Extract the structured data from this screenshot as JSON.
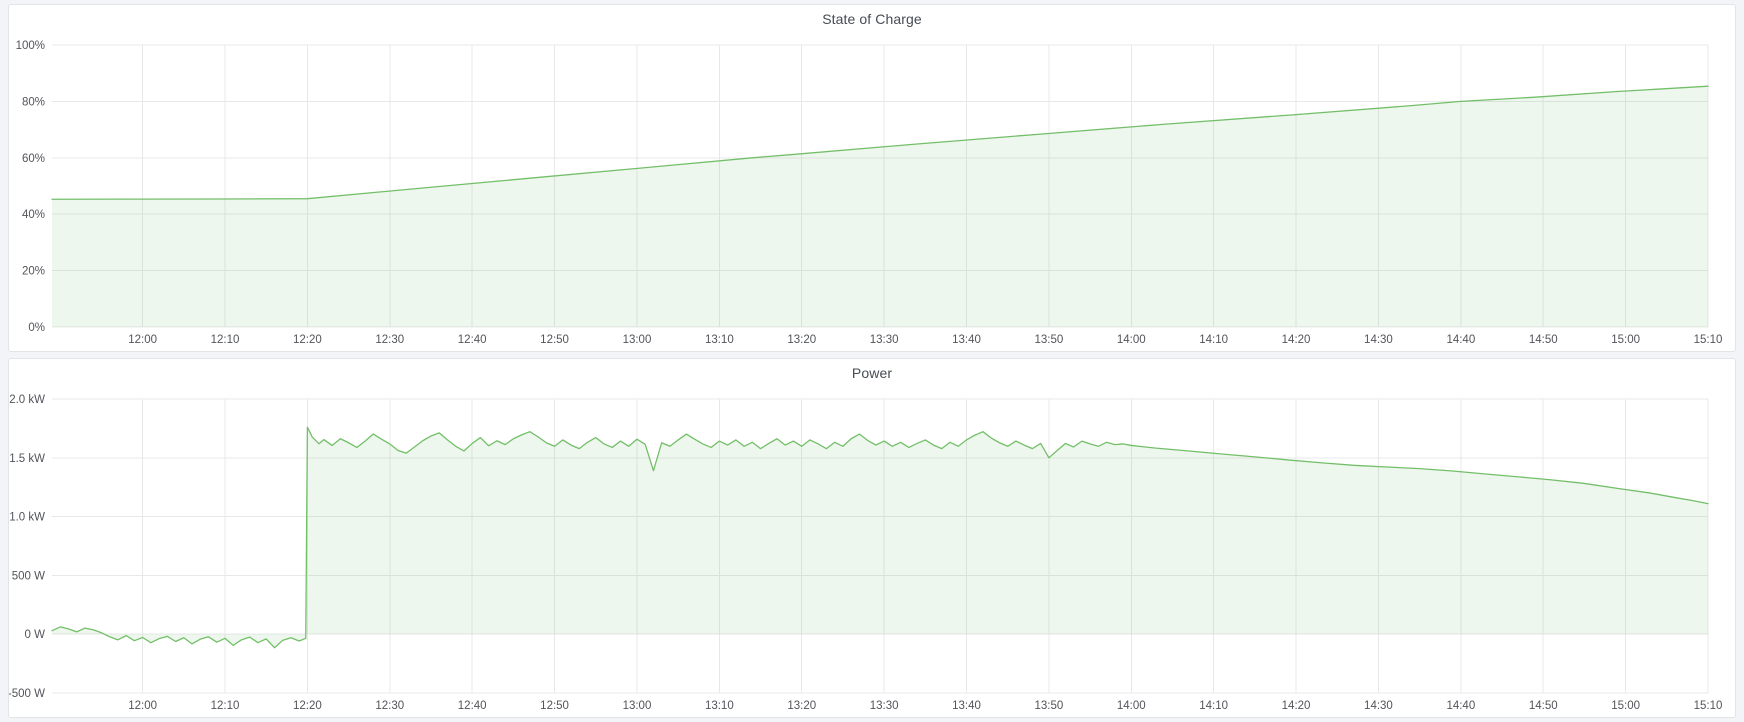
{
  "colors": {
    "series_green": "#73bf69",
    "series_fill": "rgba(115,191,105,0.12)",
    "grid": "#e7e8ea",
    "tick_text": "#52545a",
    "panel_bg": "#ffffff",
    "page_bg": "#f3f4f7"
  },
  "chart_data": [
    {
      "name": "soc",
      "type": "area",
      "title": "State of Charge",
      "xlabel": "",
      "ylabel": "",
      "legend": "none",
      "grid": "on",
      "x_start_time": "11:49",
      "x_end_time": "15:10",
      "x_total_minutes": 201,
      "x_tick_labels": [
        "12:00",
        "12:10",
        "12:20",
        "12:30",
        "12:40",
        "12:50",
        "13:00",
        "13:10",
        "13:20",
        "13:30",
        "13:40",
        "13:50",
        "14:00",
        "14:10",
        "14:20",
        "14:30",
        "14:40",
        "14:50",
        "15:00",
        "15:10"
      ],
      "x_tick_minutes": [
        11,
        21,
        31,
        41,
        51,
        61,
        71,
        81,
        91,
        101,
        111,
        121,
        131,
        141,
        151,
        161,
        171,
        181,
        191,
        201
      ],
      "ylim": [
        0,
        100
      ],
      "y_ticks": [
        {
          "v": 0,
          "label": "0%"
        },
        {
          "v": 20,
          "label": "20%"
        },
        {
          "v": 40,
          "label": "40%"
        },
        {
          "v": 60,
          "label": "60%"
        },
        {
          "v": 80,
          "label": "80%"
        },
        {
          "v": 100,
          "label": "100%"
        }
      ],
      "series": [
        {
          "name": "State of Charge",
          "unit": "%",
          "baseline": 0,
          "points": [
            [
              0,
              45.3
            ],
            [
              10,
              45.35
            ],
            [
              20,
              45.4
            ],
            [
              31,
              45.5
            ],
            [
              45,
              49.3
            ],
            [
              60,
              53.3
            ],
            [
              75,
              57.3
            ],
            [
              85,
              60.0
            ],
            [
              90,
              61.2
            ],
            [
              105,
              64.9
            ],
            [
              120,
              68.4
            ],
            [
              135,
              71.9
            ],
            [
              150,
              75.1
            ],
            [
              165,
              78.5
            ],
            [
              171,
              80.0
            ],
            [
              180,
              81.5
            ],
            [
              190,
              83.5
            ],
            [
              201,
              85.4
            ]
          ]
        }
      ]
    },
    {
      "name": "power",
      "type": "area",
      "title": "Power",
      "xlabel": "",
      "ylabel": "",
      "legend": "none",
      "grid": "on",
      "x_start_time": "11:49",
      "x_end_time": "15:10",
      "x_total_minutes": 201,
      "x_tick_labels": [
        "12:00",
        "12:10",
        "12:20",
        "12:30",
        "12:40",
        "12:50",
        "13:00",
        "13:10",
        "13:20",
        "13:30",
        "13:40",
        "13:50",
        "14:00",
        "14:10",
        "14:20",
        "14:30",
        "14:40",
        "14:50",
        "15:00",
        "15:10"
      ],
      "x_tick_minutes": [
        11,
        21,
        31,
        41,
        51,
        61,
        71,
        81,
        91,
        101,
        111,
        121,
        131,
        141,
        151,
        161,
        171,
        181,
        191,
        201
      ],
      "ylim": [
        -500,
        2000
      ],
      "y_ticks": [
        {
          "v": -500,
          "label": "-500 W"
        },
        {
          "v": 0,
          "label": "0 W"
        },
        {
          "v": 500,
          "label": "500 W"
        },
        {
          "v": 1000,
          "label": "1.0 kW"
        },
        {
          "v": 1500,
          "label": "1.5 kW"
        },
        {
          "v": 2000,
          "label": "2.0 kW"
        }
      ],
      "series": [
        {
          "name": "Power",
          "unit": "W",
          "baseline": 0,
          "points": [
            [
              0,
              30
            ],
            [
              1,
              62
            ],
            [
              2,
              45
            ],
            [
              3,
              20
            ],
            [
              4,
              52
            ],
            [
              5,
              38
            ],
            [
              6,
              12
            ],
            [
              7,
              -22
            ],
            [
              8,
              -48
            ],
            [
              9,
              -12
            ],
            [
              10,
              -55
            ],
            [
              11,
              -28
            ],
            [
              12,
              -72
            ],
            [
              13,
              -38
            ],
            [
              14,
              -18
            ],
            [
              15,
              -62
            ],
            [
              16,
              -30
            ],
            [
              17,
              -82
            ],
            [
              18,
              -42
            ],
            [
              19,
              -22
            ],
            [
              20,
              -68
            ],
            [
              21,
              -35
            ],
            [
              22,
              -95
            ],
            [
              23,
              -48
            ],
            [
              24,
              -25
            ],
            [
              25,
              -72
            ],
            [
              26,
              -40
            ],
            [
              27,
              -115
            ],
            [
              28,
              -52
            ],
            [
              29,
              -30
            ],
            [
              30,
              -58
            ],
            [
              30.8,
              -35
            ],
            [
              31,
              1760
            ],
            [
              31.6,
              1675
            ],
            [
              32.4,
              1620
            ],
            [
              33,
              1655
            ],
            [
              34,
              1605
            ],
            [
              35,
              1662
            ],
            [
              36,
              1628
            ],
            [
              37,
              1588
            ],
            [
              38,
              1642
            ],
            [
              39,
              1702
            ],
            [
              40,
              1658
            ],
            [
              41,
              1618
            ],
            [
              42,
              1562
            ],
            [
              43,
              1540
            ],
            [
              44,
              1592
            ],
            [
              45,
              1645
            ],
            [
              46,
              1685
            ],
            [
              47,
              1712
            ],
            [
              48,
              1652
            ],
            [
              49,
              1598
            ],
            [
              50,
              1558
            ],
            [
              51,
              1622
            ],
            [
              52,
              1672
            ],
            [
              53,
              1602
            ],
            [
              54,
              1645
            ],
            [
              55,
              1612
            ],
            [
              56,
              1662
            ],
            [
              57,
              1695
            ],
            [
              58,
              1722
            ],
            [
              59,
              1678
            ],
            [
              60,
              1628
            ],
            [
              61,
              1598
            ],
            [
              62,
              1652
            ],
            [
              63,
              1608
            ],
            [
              64,
              1578
            ],
            [
              65,
              1632
            ],
            [
              66,
              1672
            ],
            [
              67,
              1618
            ],
            [
              68,
              1588
            ],
            [
              69,
              1642
            ],
            [
              70,
              1598
            ],
            [
              71,
              1658
            ],
            [
              72,
              1615
            ],
            [
              73,
              1390
            ],
            [
              74,
              1628
            ],
            [
              75,
              1598
            ],
            [
              76,
              1652
            ],
            [
              77,
              1702
            ],
            [
              78,
              1658
            ],
            [
              79,
              1618
            ],
            [
              80,
              1588
            ],
            [
              81,
              1642
            ],
            [
              82,
              1608
            ],
            [
              83,
              1652
            ],
            [
              84,
              1598
            ],
            [
              85,
              1632
            ],
            [
              86,
              1578
            ],
            [
              87,
              1622
            ],
            [
              88,
              1662
            ],
            [
              89,
              1608
            ],
            [
              90,
              1642
            ],
            [
              91,
              1598
            ],
            [
              92,
              1652
            ],
            [
              93,
              1618
            ],
            [
              94,
              1578
            ],
            [
              95,
              1632
            ],
            [
              96,
              1598
            ],
            [
              97,
              1662
            ],
            [
              98,
              1702
            ],
            [
              99,
              1648
            ],
            [
              100,
              1608
            ],
            [
              101,
              1642
            ],
            [
              102,
              1598
            ],
            [
              103,
              1632
            ],
            [
              104,
              1588
            ],
            [
              105,
              1622
            ],
            [
              106,
              1652
            ],
            [
              107,
              1608
            ],
            [
              108,
              1578
            ],
            [
              109,
              1632
            ],
            [
              110,
              1598
            ],
            [
              111,
              1652
            ],
            [
              112,
              1692
            ],
            [
              113,
              1722
            ],
            [
              114,
              1668
            ],
            [
              115,
              1628
            ],
            [
              116,
              1598
            ],
            [
              117,
              1642
            ],
            [
              118,
              1608
            ],
            [
              119,
              1578
            ],
            [
              120,
              1622
            ],
            [
              121,
              1500
            ],
            [
              122,
              1562
            ],
            [
              123,
              1622
            ],
            [
              124,
              1592
            ],
            [
              125,
              1642
            ],
            [
              126,
              1618
            ],
            [
              127,
              1598
            ],
            [
              128,
              1632
            ],
            [
              129,
              1612
            ],
            [
              130,
              1618
            ],
            [
              131,
              1605
            ],
            [
              134,
              1582
            ],
            [
              138,
              1558
            ],
            [
              142,
              1532
            ],
            [
              146,
              1508
            ],
            [
              150,
              1482
            ],
            [
              154,
              1458
            ],
            [
              158,
              1436
            ],
            [
              162,
              1422
            ],
            [
              166,
              1408
            ],
            [
              170,
              1388
            ],
            [
              174,
              1362
            ],
            [
              178,
              1338
            ],
            [
              182,
              1312
            ],
            [
              186,
              1282
            ],
            [
              190,
              1240
            ],
            [
              194,
              1200
            ],
            [
              197,
              1162
            ],
            [
              199,
              1138
            ],
            [
              201,
              1110
            ]
          ]
        }
      ]
    }
  ]
}
